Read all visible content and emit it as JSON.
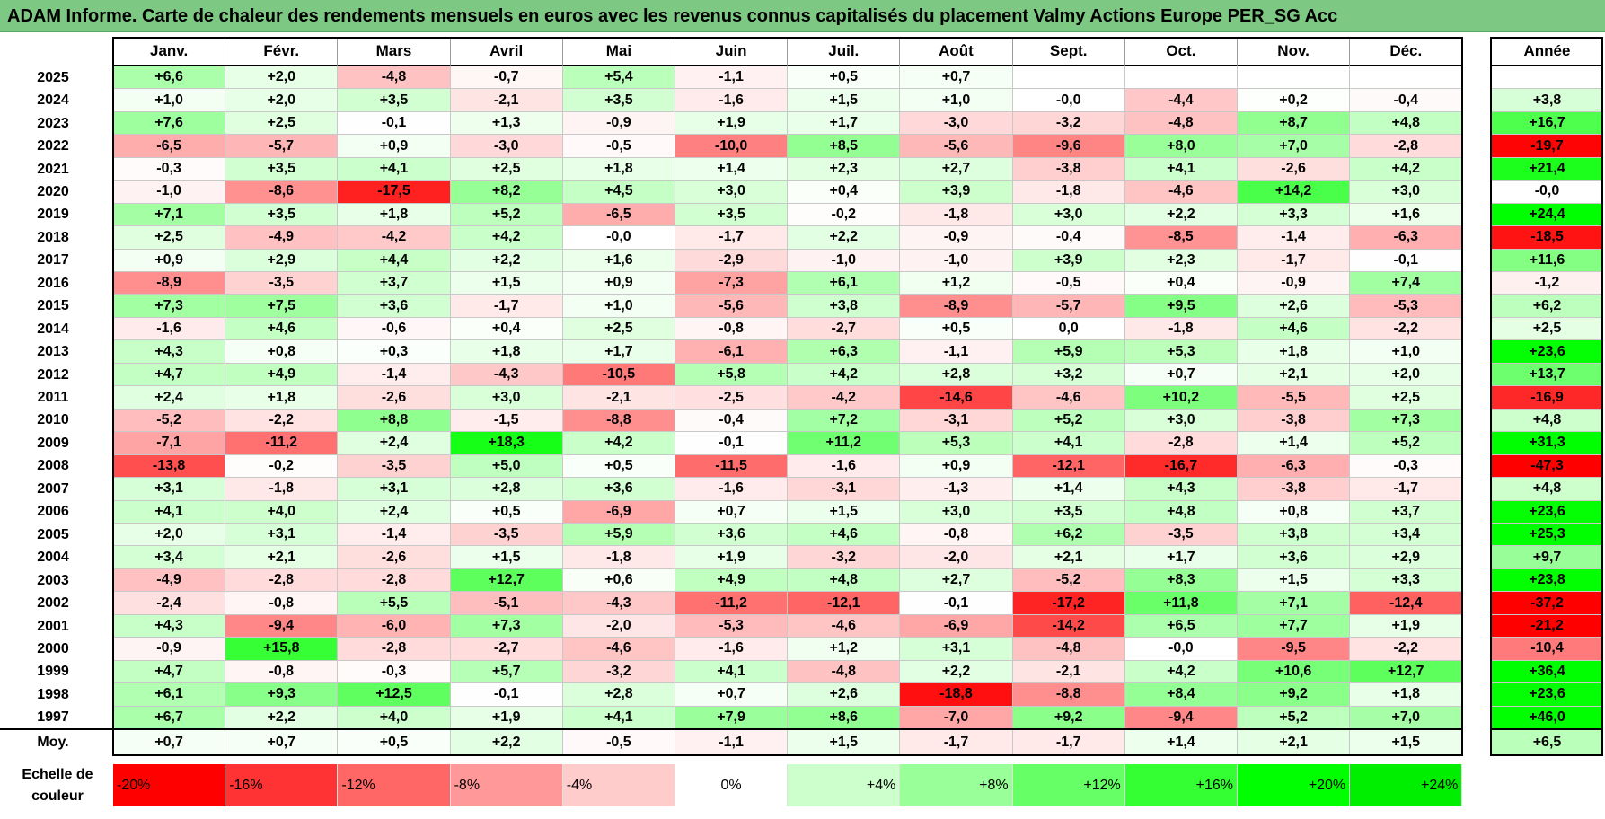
{
  "title": "ADAM Informe. Carte de chaleur des rendements mensuels en euros avec les revenus connus capitalisés du placement Valmy Actions Europe PER_SG Acc",
  "chart_data": {
    "type": "heatmap",
    "columns": [
      "Janv.",
      "Févr.",
      "Mars",
      "Avril",
      "Mai",
      "Juin",
      "Juil.",
      "Août",
      "Sept.",
      "Oct.",
      "Nov.",
      "Déc."
    ],
    "total_header": "Année",
    "rows": [
      {
        "year": "2025",
        "values": [
          "+6,6",
          "+2,0",
          "-4,8",
          "-0,7",
          "+5,4",
          "-1,1",
          "+0,5",
          "+0,7",
          "",
          "",
          "",
          ""
        ],
        "total": ""
      },
      {
        "year": "2024",
        "values": [
          "+1,0",
          "+2,0",
          "+3,5",
          "-2,1",
          "+3,5",
          "-1,6",
          "+1,5",
          "+1,0",
          "-0,0",
          "-4,4",
          "+0,2",
          "-0,4"
        ],
        "total": "+3,8"
      },
      {
        "year": "2023",
        "values": [
          "+7,6",
          "+2,5",
          "-0,1",
          "+1,3",
          "-0,9",
          "+1,9",
          "+1,7",
          "-3,0",
          "-3,2",
          "-4,8",
          "+8,7",
          "+4,8"
        ],
        "total": "+16,7"
      },
      {
        "year": "2022",
        "values": [
          "-6,5",
          "-5,7",
          "+0,9",
          "-3,0",
          "-0,5",
          "-10,0",
          "+8,5",
          "-5,6",
          "-9,6",
          "+8,0",
          "+7,0",
          "-2,8"
        ],
        "total": "-19,7"
      },
      {
        "year": "2021",
        "values": [
          "-0,3",
          "+3,5",
          "+4,1",
          "+2,5",
          "+1,8",
          "+1,4",
          "+2,3",
          "+2,7",
          "-3,8",
          "+4,1",
          "-2,6",
          "+4,2"
        ],
        "total": "+21,4"
      },
      {
        "year": "2020",
        "values": [
          "-1,0",
          "-8,6",
          "-17,5",
          "+8,2",
          "+4,5",
          "+3,0",
          "+0,4",
          "+3,9",
          "-1,8",
          "-4,6",
          "+14,2",
          "+3,0"
        ],
        "total": "-0,0"
      },
      {
        "year": "2019",
        "values": [
          "+7,1",
          "+3,5",
          "+1,8",
          "+5,2",
          "-6,5",
          "+3,5",
          "-0,2",
          "-1,8",
          "+3,0",
          "+2,2",
          "+3,3",
          "+1,6"
        ],
        "total": "+24,4"
      },
      {
        "year": "2018",
        "values": [
          "+2,5",
          "-4,9",
          "-4,2",
          "+4,2",
          "-0,0",
          "-1,7",
          "+2,2",
          "-0,9",
          "-0,4",
          "-8,5",
          "-1,4",
          "-6,3"
        ],
        "total": "-18,5"
      },
      {
        "year": "2017",
        "values": [
          "+0,9",
          "+2,9",
          "+4,4",
          "+2,2",
          "+1,6",
          "-2,9",
          "-1,0",
          "-1,0",
          "+3,9",
          "+2,3",
          "-1,7",
          "-0,1"
        ],
        "total": "+11,6"
      },
      {
        "year": "2016",
        "values": [
          "-8,9",
          "-3,5",
          "+3,7",
          "+1,5",
          "+0,9",
          "-7,3",
          "+6,1",
          "+1,2",
          "-0,5",
          "+0,4",
          "-0,9",
          "+7,4"
        ],
        "total": "-1,2"
      },
      {
        "year": "2015",
        "values": [
          "+7,3",
          "+7,5",
          "+3,6",
          "-1,7",
          "+1,0",
          "-5,6",
          "+3,8",
          "-8,9",
          "-5,7",
          "+9,5",
          "+2,6",
          "-5,3"
        ],
        "total": "+6,2"
      },
      {
        "year": "2014",
        "values": [
          "-1,6",
          "+4,6",
          "-0,6",
          "+0,4",
          "+2,5",
          "-0,8",
          "-2,7",
          "+0,5",
          "0,0",
          "-1,8",
          "+4,6",
          "-2,2"
        ],
        "total": "+2,5"
      },
      {
        "year": "2013",
        "values": [
          "+4,3",
          "+0,8",
          "+0,3",
          "+1,8",
          "+1,7",
          "-6,1",
          "+6,3",
          "-1,1",
          "+5,9",
          "+5,3",
          "+1,8",
          "+1,0"
        ],
        "total": "+23,6"
      },
      {
        "year": "2012",
        "values": [
          "+4,7",
          "+4,9",
          "-1,4",
          "-4,3",
          "-10,5",
          "+5,8",
          "+4,2",
          "+2,8",
          "+3,2",
          "+0,7",
          "+2,1",
          "+2,0"
        ],
        "total": "+13,7"
      },
      {
        "year": "2011",
        "values": [
          "+2,4",
          "+1,8",
          "-2,6",
          "+3,0",
          "-2,1",
          "-2,5",
          "-4,2",
          "-14,6",
          "-4,6",
          "+10,2",
          "-5,5",
          "+2,5"
        ],
        "total": "-16,9"
      },
      {
        "year": "2010",
        "values": [
          "-5,2",
          "-2,2",
          "+8,8",
          "-1,5",
          "-8,8",
          "-0,4",
          "+7,2",
          "-3,1",
          "+5,2",
          "+3,0",
          "-3,8",
          "+7,3"
        ],
        "total": "+4,8"
      },
      {
        "year": "2009",
        "values": [
          "-7,1",
          "-11,2",
          "+2,4",
          "+18,3",
          "+4,2",
          "-0,1",
          "+11,2",
          "+5,3",
          "+4,1",
          "-2,8",
          "+1,4",
          "+5,2"
        ],
        "total": "+31,3"
      },
      {
        "year": "2008",
        "values": [
          "-13,8",
          "-0,2",
          "-3,5",
          "+5,0",
          "+0,5",
          "-11,5",
          "-1,6",
          "+0,9",
          "-12,1",
          "-16,7",
          "-6,3",
          "-0,3"
        ],
        "total": "-47,3"
      },
      {
        "year": "2007",
        "values": [
          "+3,1",
          "-1,8",
          "+3,1",
          "+2,8",
          "+3,6",
          "-1,6",
          "-3,1",
          "-1,3",
          "+1,4",
          "+4,3",
          "-3,8",
          "-1,7"
        ],
        "total": "+4,8"
      },
      {
        "year": "2006",
        "values": [
          "+4,1",
          "+4,0",
          "+2,4",
          "+0,5",
          "-6,9",
          "+0,7",
          "+1,5",
          "+3,0",
          "+3,5",
          "+4,8",
          "+0,8",
          "+3,7"
        ],
        "total": "+23,6"
      },
      {
        "year": "2005",
        "values": [
          "+2,0",
          "+3,1",
          "-1,4",
          "-3,5",
          "+5,9",
          "+3,6",
          "+4,6",
          "-0,8",
          "+6,2",
          "-3,5",
          "+3,8",
          "+3,4"
        ],
        "total": "+25,3"
      },
      {
        "year": "2004",
        "values": [
          "+3,4",
          "+2,1",
          "-2,6",
          "+1,5",
          "-1,8",
          "+1,9",
          "-3,2",
          "-2,0",
          "+2,1",
          "+1,7",
          "+3,6",
          "+2,9"
        ],
        "total": "+9,7"
      },
      {
        "year": "2003",
        "values": [
          "-4,9",
          "-2,8",
          "-2,8",
          "+12,7",
          "+0,6",
          "+4,9",
          "+4,8",
          "+2,7",
          "-5,2",
          "+8,3",
          "+1,5",
          "+3,3"
        ],
        "total": "+23,8"
      },
      {
        "year": "2002",
        "values": [
          "-2,4",
          "-0,8",
          "+5,5",
          "-5,1",
          "-4,3",
          "-11,2",
          "-12,1",
          "-0,1",
          "-17,2",
          "+11,8",
          "+7,1",
          "-12,4"
        ],
        "total": "-37,2"
      },
      {
        "year": "2001",
        "values": [
          "+4,3",
          "-9,4",
          "-6,0",
          "+7,3",
          "-2,0",
          "-5,3",
          "-4,6",
          "-6,9",
          "-14,2",
          "+6,5",
          "+7,7",
          "+1,9"
        ],
        "total": "-21,2"
      },
      {
        "year": "2000",
        "values": [
          "-0,9",
          "+15,8",
          "-2,8",
          "-2,7",
          "-4,6",
          "-1,6",
          "+1,2",
          "+3,1",
          "-4,8",
          "-0,0",
          "-9,5",
          "-2,2"
        ],
        "total": "-10,4"
      },
      {
        "year": "1999",
        "values": [
          "+4,7",
          "-0,8",
          "-0,3",
          "+5,7",
          "-3,2",
          "+4,1",
          "-4,8",
          "+2,2",
          "-2,1",
          "+4,2",
          "+10,6",
          "+12,7"
        ],
        "total": "+36,4"
      },
      {
        "year": "1998",
        "values": [
          "+6,1",
          "+9,3",
          "+12,5",
          "-0,1",
          "+2,8",
          "+0,7",
          "+2,6",
          "-18,8",
          "-8,8",
          "+8,4",
          "+9,2",
          "+1,8"
        ],
        "total": "+23,6"
      },
      {
        "year": "1997",
        "values": [
          "+6,7",
          "+2,2",
          "+4,0",
          "+1,9",
          "+4,1",
          "+7,9",
          "+8,6",
          "-7,0",
          "+9,2",
          "-9,4",
          "+5,2",
          "+7,0"
        ],
        "total": "+46,0"
      }
    ],
    "average": {
      "label": "Moy.",
      "values": [
        "+0,7",
        "+0,7",
        "+0,5",
        "+2,2",
        "-0,5",
        "-1,1",
        "+1,5",
        "-1,7",
        "-1,7",
        "+1,4",
        "+2,1",
        "+1,5"
      ],
      "total": "+6,5"
    },
    "color_scale": {
      "label": "Echelle de couleur",
      "stops": [
        {
          "label": "-20%",
          "value": -20,
          "color": "#ff0000"
        },
        {
          "label": "-16%",
          "value": -16,
          "color": "#ff3333"
        },
        {
          "label": "-12%",
          "value": -12,
          "color": "#ff6666"
        },
        {
          "label": "-8%",
          "value": -8,
          "color": "#ff9999"
        },
        {
          "label": "-4%",
          "value": -4,
          "color": "#ffcccc"
        },
        {
          "label": "0%",
          "value": 0,
          "color": "#ffffff"
        },
        {
          "label": "+4%",
          "value": 4,
          "color": "#ccffcc"
        },
        {
          "label": "+8%",
          "value": 8,
          "color": "#99ff99"
        },
        {
          "label": "+12%",
          "value": 12,
          "color": "#66ff66"
        },
        {
          "label": "+16%",
          "value": 16,
          "color": "#33ff33"
        },
        {
          "label": "+20%",
          "value": 20,
          "color": "#00ff00"
        },
        {
          "label": "+24%",
          "value": 24,
          "color": "#00ee00"
        }
      ]
    }
  }
}
